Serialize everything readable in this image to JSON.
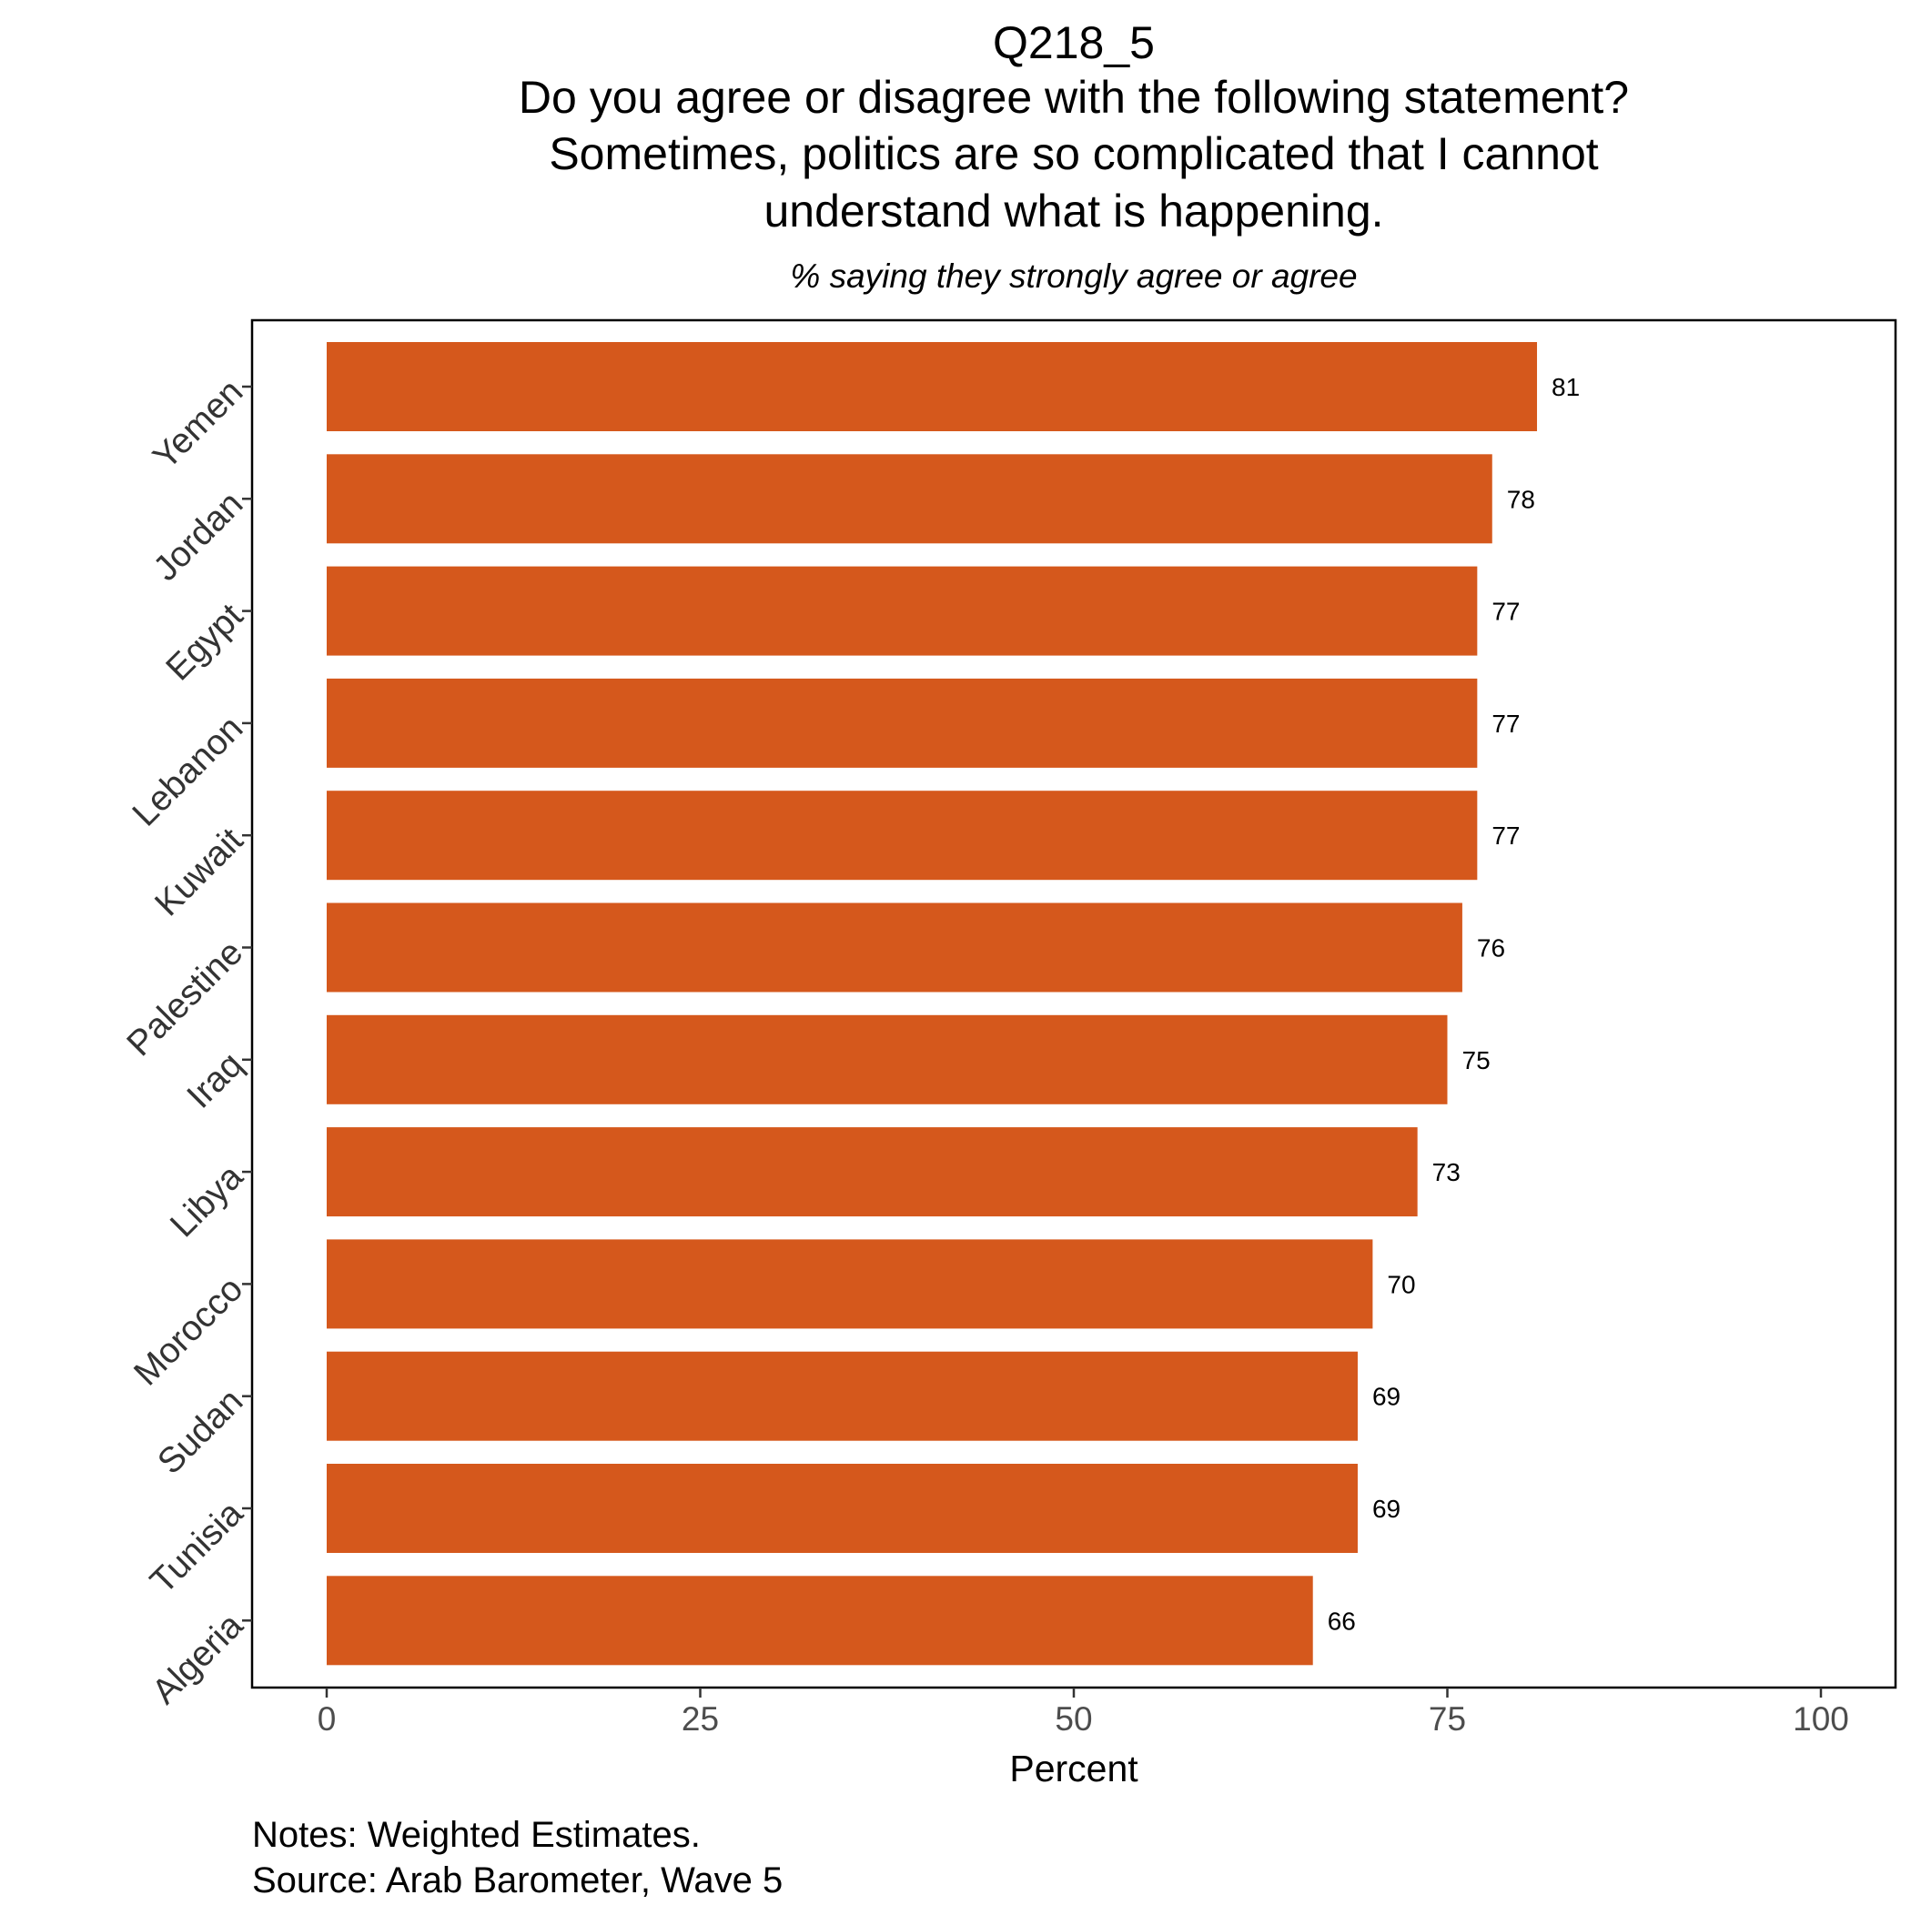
{
  "chart_data": {
    "type": "bar",
    "orientation": "horizontal",
    "title_lines": [
      "Q218_5",
      "Do you agree or disagree with the following statement?",
      "Sometimes, politics are so complicated that I cannot",
      "understand what is happening."
    ],
    "subtitle": "% saying they strongly agree or agree",
    "xlabel": "Percent",
    "ylabel": "",
    "xlim": [
      0,
      100
    ],
    "x_ticks": [
      0,
      25,
      50,
      75,
      100
    ],
    "categories": [
      "Yemen",
      "Jordan",
      "Egypt",
      "Lebanon",
      "Kuwait",
      "Palestine",
      "Iraq",
      "Libya",
      "Morocco",
      "Sudan",
      "Tunisia",
      "Algeria"
    ],
    "values": [
      81,
      78,
      77,
      77,
      77,
      76,
      75,
      73,
      70,
      69,
      69,
      66
    ],
    "data_labels": [
      "81",
      "78",
      "77",
      "77",
      "77",
      "76",
      "75",
      "73",
      "70",
      "69",
      "69",
      "66"
    ],
    "bar_color": "#D5581C",
    "grid": false,
    "legend": "none",
    "notes": [
      "Notes: Weighted Estimates.",
      "Source: Arab Barometer, Wave 5"
    ]
  }
}
